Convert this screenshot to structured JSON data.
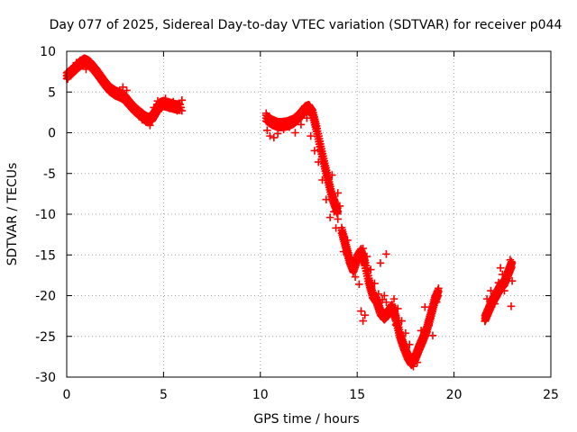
{
  "chart_data": {
    "type": "scatter",
    "title": "Day 077 of 2025, Sidereal Day-to-day VTEC variation (SDTVAR) for receiver p044",
    "xlabel": "GPS time / hours",
    "ylabel": "SDTVAR / TECUs",
    "xlim": [
      0,
      25
    ],
    "ylim": [
      -30,
      10
    ],
    "x_ticks": [
      "0",
      "5",
      "10",
      "15",
      "20",
      "25"
    ],
    "y_ticks": [
      "10",
      "5",
      "0",
      "-5",
      "-10",
      "-15",
      "-20",
      "-25",
      "-30"
    ],
    "grid": true,
    "marker": "+",
    "color": "#ff0000",
    "series": [
      {
        "trace": [
          [
            0.0,
            7.0
          ],
          [
            0.3,
            7.6
          ],
          [
            0.6,
            8.3
          ],
          [
            0.9,
            8.8
          ],
          [
            1.1,
            8.6
          ],
          [
            1.3,
            8.2
          ],
          [
            1.6,
            7.3
          ],
          [
            1.9,
            6.3
          ],
          [
            2.2,
            5.4
          ],
          [
            2.5,
            4.9
          ],
          [
            2.8,
            4.6
          ],
          [
            3.0,
            4.3
          ],
          [
            3.2,
            3.7
          ],
          [
            3.5,
            2.9
          ],
          [
            3.8,
            2.3
          ],
          [
            4.0,
            1.9
          ],
          [
            4.2,
            1.6
          ],
          [
            4.4,
            1.8
          ],
          [
            4.6,
            2.6
          ],
          [
            4.8,
            3.4
          ],
          [
            5.0,
            3.6
          ],
          [
            5.3,
            3.4
          ],
          [
            5.6,
            3.2
          ],
          [
            5.9,
            3.1
          ]
        ],
        "points": [
          [
            0.05,
            6.6
          ],
          [
            0.2,
            7.3
          ],
          [
            0.5,
            8.6
          ],
          [
            0.7,
            8.9
          ],
          [
            1.0,
            7.8
          ],
          [
            1.2,
            8.8
          ],
          [
            1.5,
            7.9
          ],
          [
            1.8,
            6.9
          ],
          [
            2.1,
            5.8
          ],
          [
            2.4,
            5.2
          ],
          [
            2.7,
            4.9
          ],
          [
            2.9,
            5.6
          ],
          [
            3.1,
            5.2
          ],
          [
            3.3,
            3.5
          ],
          [
            3.6,
            2.5
          ],
          [
            3.9,
            1.6
          ],
          [
            4.1,
            1.3
          ],
          [
            4.3,
            0.9
          ],
          [
            4.5,
            3.1
          ],
          [
            4.7,
            3.9
          ],
          [
            4.9,
            3.0
          ],
          [
            5.1,
            4.2
          ],
          [
            5.3,
            3.0
          ],
          [
            5.5,
            3.8
          ],
          [
            5.7,
            2.7
          ],
          [
            5.8,
            3.6
          ],
          [
            5.95,
            4.0
          ],
          [
            5.95,
            2.7
          ]
        ]
      },
      {
        "trace": [
          [
            10.3,
            1.8
          ],
          [
            10.6,
            1.3
          ],
          [
            10.9,
            1.0
          ],
          [
            11.1,
            1.0
          ],
          [
            11.4,
            1.1
          ],
          [
            11.7,
            1.4
          ],
          [
            12.0,
            2.0
          ],
          [
            12.3,
            2.9
          ],
          [
            12.5,
            3.1
          ],
          [
            12.7,
            2.4
          ],
          [
            12.9,
            0.5
          ],
          [
            13.1,
            -1.7
          ],
          [
            13.3,
            -3.8
          ],
          [
            13.5,
            -5.8
          ],
          [
            13.7,
            -7.8
          ],
          [
            13.9,
            -9.1
          ],
          [
            14.0,
            -9.7
          ]
        ],
        "points": [
          [
            10.3,
            2.4
          ],
          [
            10.35,
            0.3
          ],
          [
            10.5,
            -0.4
          ],
          [
            10.7,
            -0.6
          ],
          [
            10.9,
            -0.1
          ],
          [
            11.2,
            0.4
          ],
          [
            11.5,
            0.7
          ],
          [
            11.8,
            0.0
          ],
          [
            12.1,
            1.0
          ],
          [
            12.4,
            1.8
          ],
          [
            12.6,
            -0.4
          ],
          [
            12.8,
            -2.2
          ],
          [
            13.0,
            -3.6
          ],
          [
            13.2,
            -5.8
          ],
          [
            13.4,
            -8.2
          ],
          [
            13.6,
            -10.4
          ],
          [
            13.8,
            -9.7
          ],
          [
            14.0,
            -7.4
          ],
          [
            13.9,
            -11.7
          ],
          [
            13.7,
            -5.2
          ],
          [
            14.0,
            -10.6
          ],
          [
            14.1,
            -9.0
          ]
        ]
      },
      {
        "trace": [
          [
            14.2,
            -12.0
          ],
          [
            14.4,
            -13.8
          ],
          [
            14.6,
            -15.6
          ],
          [
            14.8,
            -16.8
          ],
          [
            15.0,
            -15.4
          ],
          [
            15.2,
            -14.6
          ],
          [
            15.4,
            -16.0
          ],
          [
            15.6,
            -18.2
          ],
          [
            15.8,
            -19.9
          ],
          [
            16.0,
            -20.6
          ],
          [
            16.2,
            -22.0
          ],
          [
            16.4,
            -22.6
          ],
          [
            16.6,
            -22.1
          ],
          [
            16.8,
            -21.4
          ],
          [
            17.0,
            -22.8
          ],
          [
            17.2,
            -24.8
          ],
          [
            17.4,
            -26.2
          ],
          [
            17.6,
            -27.4
          ],
          [
            17.8,
            -28.2
          ],
          [
            18.0,
            -27.6
          ],
          [
            18.2,
            -26.4
          ],
          [
            18.4,
            -25.3
          ],
          [
            18.6,
            -24.1
          ],
          [
            18.8,
            -22.4
          ],
          [
            19.0,
            -20.6
          ],
          [
            19.2,
            -19.5
          ]
        ],
        "points": [
          [
            14.3,
            -14.6
          ],
          [
            14.5,
            -13.2
          ],
          [
            14.7,
            -15.9
          ],
          [
            14.9,
            -17.7
          ],
          [
            15.1,
            -18.6
          ],
          [
            15.3,
            -14.2
          ],
          [
            15.5,
            -15.2
          ],
          [
            15.7,
            -16.8
          ],
          [
            15.9,
            -18.5
          ],
          [
            16.1,
            -19.8
          ],
          [
            16.3,
            -20.5
          ],
          [
            16.5,
            -20.8
          ],
          [
            16.7,
            -21.6
          ],
          [
            16.9,
            -20.4
          ],
          [
            17.1,
            -21.6
          ],
          [
            17.3,
            -23.1
          ],
          [
            17.5,
            -24.6
          ],
          [
            17.7,
            -26.0
          ],
          [
            17.9,
            -28.7
          ],
          [
            18.1,
            -28.2
          ],
          [
            18.3,
            -24.3
          ],
          [
            18.5,
            -21.4
          ],
          [
            18.7,
            -23.6
          ],
          [
            18.9,
            -24.9
          ],
          [
            19.1,
            -20.8
          ],
          [
            19.2,
            -19.1
          ],
          [
            15.2,
            -21.9
          ],
          [
            15.3,
            -23.1
          ],
          [
            15.4,
            -22.4
          ],
          [
            16.2,
            -16.0
          ],
          [
            16.5,
            -14.9
          ],
          [
            16.4,
            -20.0
          ],
          [
            17.0,
            -23.6
          ]
        ]
      },
      {
        "trace": [
          [
            21.6,
            -22.8
          ],
          [
            21.8,
            -21.7
          ],
          [
            22.0,
            -20.6
          ],
          [
            22.2,
            -19.8
          ],
          [
            22.4,
            -18.9
          ],
          [
            22.6,
            -18.4
          ],
          [
            22.8,
            -17.2
          ],
          [
            23.0,
            -16.0
          ]
        ],
        "points": [
          [
            21.6,
            -23.1
          ],
          [
            21.7,
            -20.4
          ],
          [
            21.9,
            -19.4
          ],
          [
            22.1,
            -21.0
          ],
          [
            22.3,
            -18.4
          ],
          [
            22.5,
            -17.4
          ],
          [
            22.7,
            -18.0
          ],
          [
            22.9,
            -15.6
          ],
          [
            23.0,
            -18.2
          ],
          [
            22.95,
            -21.3
          ],
          [
            22.4,
            -16.6
          ],
          [
            22.6,
            -19.4
          ]
        ]
      }
    ]
  }
}
